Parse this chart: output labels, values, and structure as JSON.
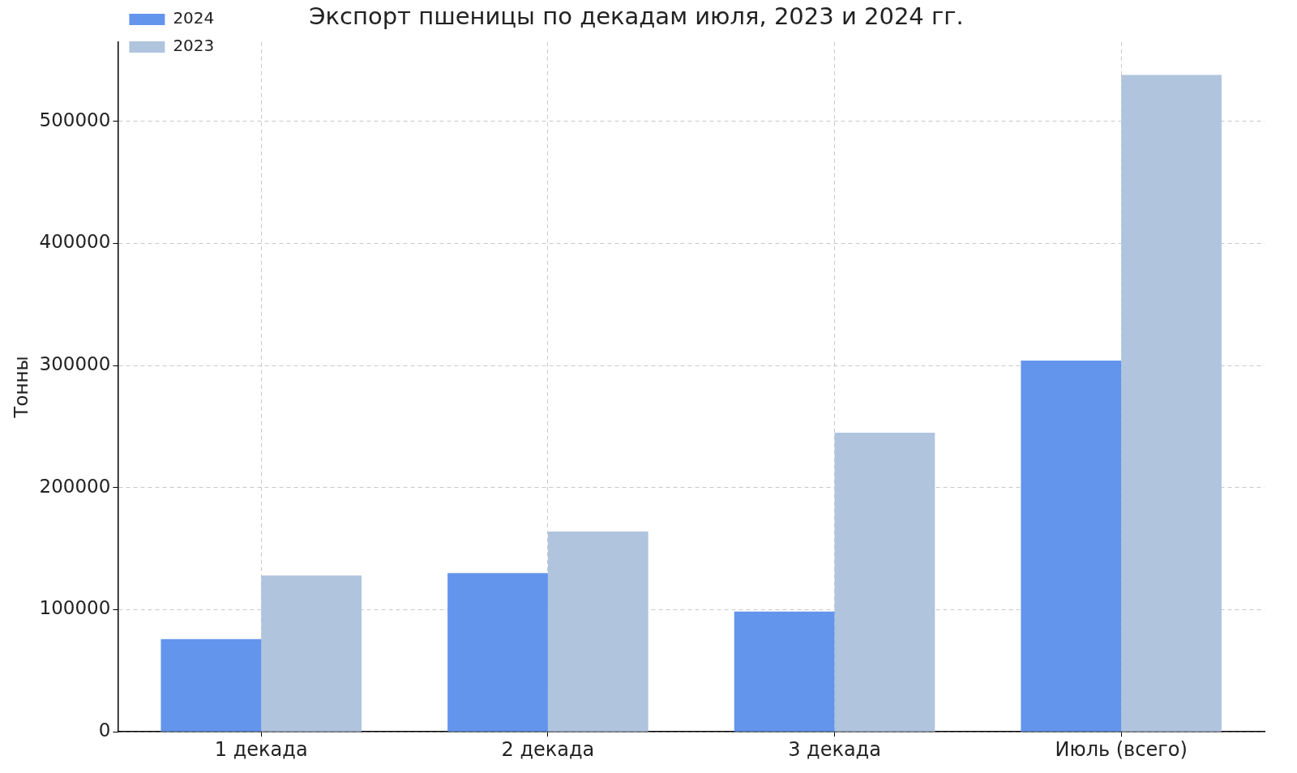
{
  "chart_data": {
    "type": "bar",
    "title": "Экспорт пшеницы по декадам июля, 2023 и 2024 гг.",
    "ylabel": "Тонны",
    "categories": [
      "1 декада",
      "2 декада",
      "3 декада",
      "Июль (всего)"
    ],
    "series": [
      {
        "name": "2024",
        "color": "#6495ed",
        "values": [
          76000,
          130000,
          98500,
          304000
        ]
      },
      {
        "name": "2023",
        "color": "#b0c4de",
        "values": [
          128000,
          164000,
          245000,
          538000
        ]
      }
    ],
    "ylim": [
      0,
      565000
    ],
    "yticks": [
      0,
      100000,
      200000,
      300000,
      400000,
      500000
    ],
    "grid": true,
    "legend": "top left"
  }
}
